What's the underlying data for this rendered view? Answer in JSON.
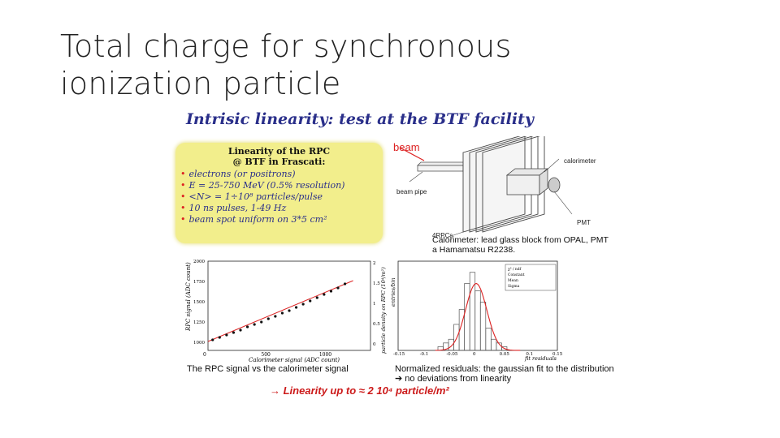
{
  "slide": {
    "title": "Total charge for synchronous ionization particle"
  },
  "figure": {
    "heading": "Intrisic linearity: test at the BTF facility",
    "info_box": {
      "title_line1": "Linearity of the RPC",
      "title_line2": "@ BTF in Frascati:",
      "items": [
        "electrons (or positrons)",
        "E = 25-750 MeV (0.5% resolution)",
        "<N> = 1÷10⁸ particles/pulse",
        "10 ns pulses, 1-49 Hz",
        "beam spot uniform on 3*5 cm²"
      ]
    },
    "diagram": {
      "beam_label": "beam",
      "beam_pipe_label": "beam pipe",
      "calorimeter_label": "calorimeter",
      "pmt_label": "PMT",
      "rpcs_label": "4RPCs",
      "caption": "Calorimeter: lead glass block from OPAL, PMT  a Hamamatsu R2238."
    },
    "left_plot": {
      "xlabel": "Calorimeter signal (ADC count)",
      "ylabel": "RPC signal (ADC count)",
      "ylabel_right": "particle density on RPC (10⁴/m²)",
      "x_ticks": [
        "0",
        "500",
        "1000"
      ],
      "y_ticks": [
        "2000",
        "1750",
        "1500",
        "1250",
        "1000"
      ],
      "y_ticks_right": [
        "2",
        "1.5",
        "1",
        "0.5",
        "0"
      ],
      "caption": "The RPC signal vs the calorimeter signal"
    },
    "right_plot": {
      "xlabel": "fit residuals",
      "ylabel": "entries/bin",
      "x_ticks": [
        "-0.15",
        "-0.1",
        "-0.05",
        "0",
        "0.05",
        "0.1",
        "0.15"
      ],
      "stats": [
        "χ² / ndf",
        "Constant",
        "Mean",
        "Sigma"
      ],
      "caption": "Normalized residuals: the gaussian fit to the distribution ➔ no deviations from linearity"
    },
    "bottom_line": "→ Linearity up to ≈ 2 10⁴ particle/m²"
  },
  "chart_data": [
    {
      "type": "scatter",
      "xlabel": "Calorimeter signal (ADC count)",
      "ylabel": "RPC signal (ADC count)",
      "xlim": [
        0,
        1400
      ],
      "ylim": [
        900,
        2000
      ],
      "x": [
        40,
        100,
        160,
        220,
        280,
        340,
        400,
        460,
        520,
        580,
        640,
        700,
        760,
        820,
        880,
        940,
        1000,
        1060,
        1120,
        1180
      ],
      "y": [
        1030,
        1060,
        1090,
        1120,
        1150,
        1190,
        1220,
        1250,
        1290,
        1320,
        1360,
        1390,
        1430,
        1470,
        1510,
        1550,
        1590,
        1630,
        1670,
        1720
      ],
      "fit_line": [
        [
          0,
          1010
        ],
        [
          1250,
          1760
        ]
      ]
    },
    {
      "type": "bar",
      "xlabel": "fit residuals",
      "ylabel": "entries/bin",
      "xlim": [
        -0.15,
        0.15
      ],
      "x": [
        -0.07,
        -0.06,
        -0.05,
        -0.04,
        -0.03,
        -0.02,
        -0.01,
        0,
        0.01,
        0.02,
        0.03,
        0.04,
        0.05
      ],
      "values": [
        1,
        2,
        3,
        7,
        11,
        18,
        21,
        16,
        13,
        6,
        3,
        2,
        1
      ],
      "gaussian": {
        "mean": -0.003,
        "sigma": 0.02,
        "constant": 18
      }
    }
  ]
}
